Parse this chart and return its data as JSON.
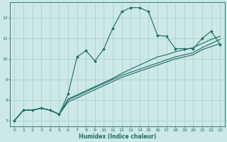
{
  "xlabel": "Humidex (Indice chaleur)",
  "ylabel": "",
  "xlim": [
    -0.5,
    23.5
  ],
  "ylim": [
    6.7,
    12.75
  ],
  "xticks": [
    0,
    1,
    2,
    3,
    4,
    5,
    6,
    7,
    8,
    9,
    10,
    11,
    12,
    13,
    14,
    15,
    16,
    17,
    18,
    19,
    20,
    21,
    22,
    23
  ],
  "yticks": [
    7,
    8,
    9,
    10,
    11,
    12
  ],
  "bg_color": "#cce8e8",
  "line_color": "#1a6e60",
  "grid_color": "#aacccc",
  "series": [
    {
      "x": [
        0,
        1,
        2,
        3,
        4,
        5,
        6,
        7,
        8,
        9,
        10,
        11,
        12,
        13,
        14,
        15,
        16,
        17,
        18,
        19,
        20,
        21,
        22,
        23
      ],
      "y": [
        7.0,
        7.5,
        7.5,
        7.6,
        7.5,
        7.3,
        8.3,
        10.1,
        10.4,
        9.9,
        10.5,
        11.5,
        12.3,
        12.5,
        12.5,
        12.3,
        11.15,
        11.1,
        10.5,
        10.5,
        10.5,
        11.0,
        11.35,
        10.7
      ],
      "marker": true
    },
    {
      "x": [
        0,
        1,
        2,
        3,
        4,
        5,
        6,
        7,
        8,
        9,
        10,
        11,
        12,
        13,
        14,
        15,
        16,
        17,
        18,
        19,
        20,
        21,
        22,
        23
      ],
      "y": [
        7.0,
        7.5,
        7.5,
        7.6,
        7.5,
        7.3,
        8.05,
        8.25,
        8.45,
        8.65,
        8.85,
        9.05,
        9.3,
        9.5,
        9.7,
        9.9,
        10.1,
        10.2,
        10.35,
        10.45,
        10.55,
        10.75,
        10.95,
        11.1
      ],
      "marker": false
    },
    {
      "x": [
        0,
        1,
        2,
        3,
        4,
        5,
        6,
        7,
        8,
        9,
        10,
        11,
        12,
        13,
        14,
        15,
        16,
        17,
        18,
        19,
        20,
        21,
        22,
        23
      ],
      "y": [
        7.0,
        7.5,
        7.5,
        7.6,
        7.5,
        7.3,
        8.0,
        8.2,
        8.4,
        8.6,
        8.8,
        9.0,
        9.2,
        9.35,
        9.5,
        9.65,
        9.8,
        9.95,
        10.1,
        10.2,
        10.3,
        10.55,
        10.75,
        10.95
      ],
      "marker": false
    },
    {
      "x": [
        0,
        1,
        2,
        3,
        4,
        5,
        6,
        7,
        8,
        9,
        10,
        11,
        12,
        13,
        14,
        15,
        16,
        17,
        18,
        19,
        20,
        21,
        22,
        23
      ],
      "y": [
        7.0,
        7.5,
        7.5,
        7.6,
        7.5,
        7.3,
        7.9,
        8.1,
        8.3,
        8.5,
        8.7,
        8.9,
        9.1,
        9.25,
        9.4,
        9.55,
        9.7,
        9.85,
        10.0,
        10.1,
        10.2,
        10.45,
        10.6,
        10.75
      ],
      "marker": false
    }
  ]
}
